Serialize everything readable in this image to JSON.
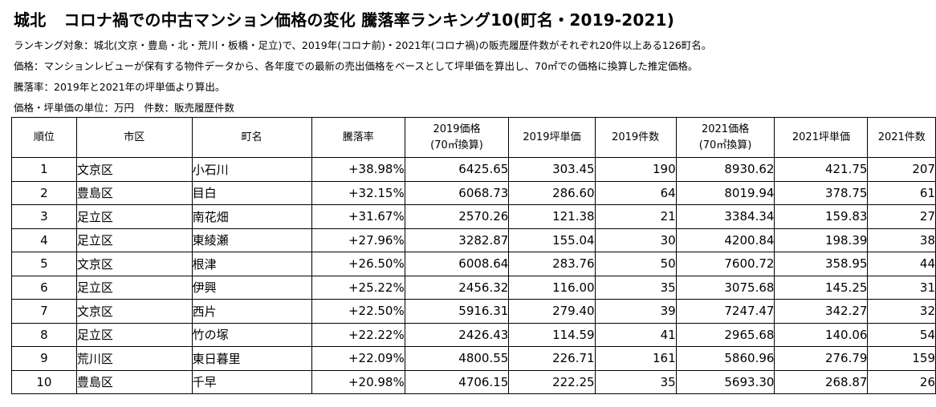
{
  "title": {
    "area": "城北",
    "main": "コロナ禍での中古マンション価格の変化 騰落率ランキング10(町名・2019-2021)"
  },
  "notes": [
    "ランキング対象：城北(文京・豊島・北・荒川・板橋・足立)で、2019年(コロナ前)・2021年(コロナ禍)の販売履歴件数がそれぞれ20件以上ある126町名。",
    "価格：マンションレビューが保有する物件データから、各年度での最新の売出価格をベースとして坪単価を算出し、70㎡での価格に換算した推定価格。",
    "騰落率：2019年と2021年の坪単価より算出。",
    "価格・坪単価の単位：万円　件数：販売履歴件数"
  ],
  "table": {
    "headers": {
      "rank": "順位",
      "ward": "市区",
      "town": "町名",
      "change": "騰落率",
      "price2019_line1": "2019価格",
      "price2019_line2": "(70㎡換算)",
      "tsubo2019": "2019坪単価",
      "count2019": "2019件数",
      "price2021_line1": "2021価格",
      "price2021_line2": "(70㎡換算)",
      "tsubo2021": "2021坪単価",
      "count2021": "2021件数"
    },
    "rows": [
      {
        "rank": "1",
        "ward": "文京区",
        "town": "小石川",
        "change": "+38.98%",
        "price2019": "6425.65",
        "tsubo2019": "303.45",
        "count2019": "190",
        "price2021": "8930.62",
        "tsubo2021": "421.75",
        "count2021": "207"
      },
      {
        "rank": "2",
        "ward": "豊島区",
        "town": "目白",
        "change": "+32.15%",
        "price2019": "6068.73",
        "tsubo2019": "286.60",
        "count2019": "64",
        "price2021": "8019.94",
        "tsubo2021": "378.75",
        "count2021": "61"
      },
      {
        "rank": "3",
        "ward": "足立区",
        "town": "南花畑",
        "change": "+31.67%",
        "price2019": "2570.26",
        "tsubo2019": "121.38",
        "count2019": "21",
        "price2021": "3384.34",
        "tsubo2021": "159.83",
        "count2021": "27"
      },
      {
        "rank": "4",
        "ward": "足立区",
        "town": "東綾瀬",
        "change": "+27.96%",
        "price2019": "3282.87",
        "tsubo2019": "155.04",
        "count2019": "30",
        "price2021": "4200.84",
        "tsubo2021": "198.39",
        "count2021": "38"
      },
      {
        "rank": "5",
        "ward": "文京区",
        "town": "根津",
        "change": "+26.50%",
        "price2019": "6008.64",
        "tsubo2019": "283.76",
        "count2019": "50",
        "price2021": "7600.72",
        "tsubo2021": "358.95",
        "count2021": "44"
      },
      {
        "rank": "6",
        "ward": "足立区",
        "town": "伊興",
        "change": "+25.22%",
        "price2019": "2456.32",
        "tsubo2019": "116.00",
        "count2019": "35",
        "price2021": "3075.68",
        "tsubo2021": "145.25",
        "count2021": "31"
      },
      {
        "rank": "7",
        "ward": "文京区",
        "town": "西片",
        "change": "+22.50%",
        "price2019": "5916.31",
        "tsubo2019": "279.40",
        "count2019": "39",
        "price2021": "7247.47",
        "tsubo2021": "342.27",
        "count2021": "32"
      },
      {
        "rank": "8",
        "ward": "足立区",
        "town": "竹の塚",
        "change": "+22.22%",
        "price2019": "2426.43",
        "tsubo2019": "114.59",
        "count2019": "41",
        "price2021": "2965.68",
        "tsubo2021": "140.06",
        "count2021": "54"
      },
      {
        "rank": "9",
        "ward": "荒川区",
        "town": "東日暮里",
        "change": "+22.09%",
        "price2019": "4800.55",
        "tsubo2019": "226.71",
        "count2019": "161",
        "price2021": "5860.96",
        "tsubo2021": "276.79",
        "count2021": "159"
      },
      {
        "rank": "10",
        "ward": "豊島区",
        "town": "千早",
        "change": "+20.98%",
        "price2019": "4706.15",
        "tsubo2019": "222.25",
        "count2019": "35",
        "price2021": "5693.30",
        "tsubo2021": "268.87",
        "count2021": "26"
      }
    ]
  }
}
